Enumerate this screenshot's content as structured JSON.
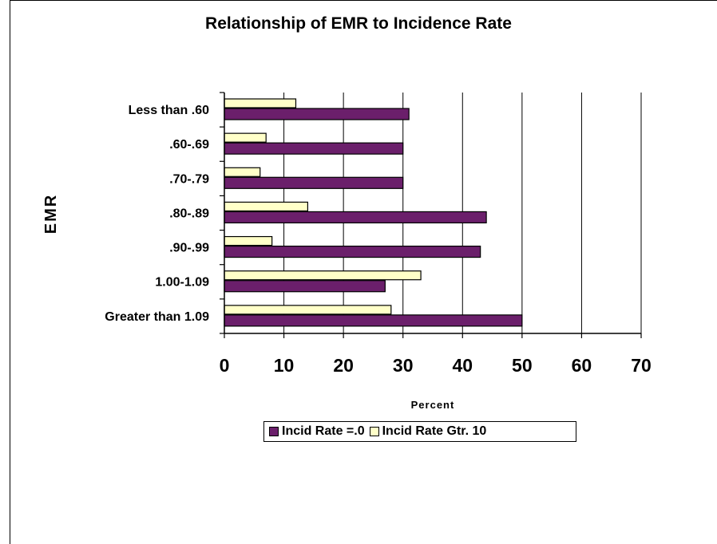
{
  "chart_data": {
    "type": "bar",
    "orientation": "horizontal",
    "title": "Relationship of EMR to Incidence Rate",
    "xlabel": "Percent",
    "ylabel": "EMR",
    "categories": [
      "Less than .60",
      ".60-.69",
      ".70-.79",
      ".80-.89",
      ".90-.99",
      "1.00-1.09",
      "Greater than 1.09"
    ],
    "series": [
      {
        "name": "Incid Rate =.0",
        "color": "#6b1f6b",
        "values": [
          31,
          30,
          30,
          44,
          43,
          27,
          50
        ]
      },
      {
        "name": "Incid Rate Gtr. 10",
        "color": "#ffffc8",
        "values": [
          12,
          7,
          6,
          14,
          8,
          33,
          28
        ]
      }
    ],
    "xlim": [
      0,
      70
    ],
    "xticks": [
      0,
      10,
      20,
      30,
      40,
      50,
      60,
      70
    ],
    "grid": "vertical",
    "legend_position": "bottom"
  }
}
